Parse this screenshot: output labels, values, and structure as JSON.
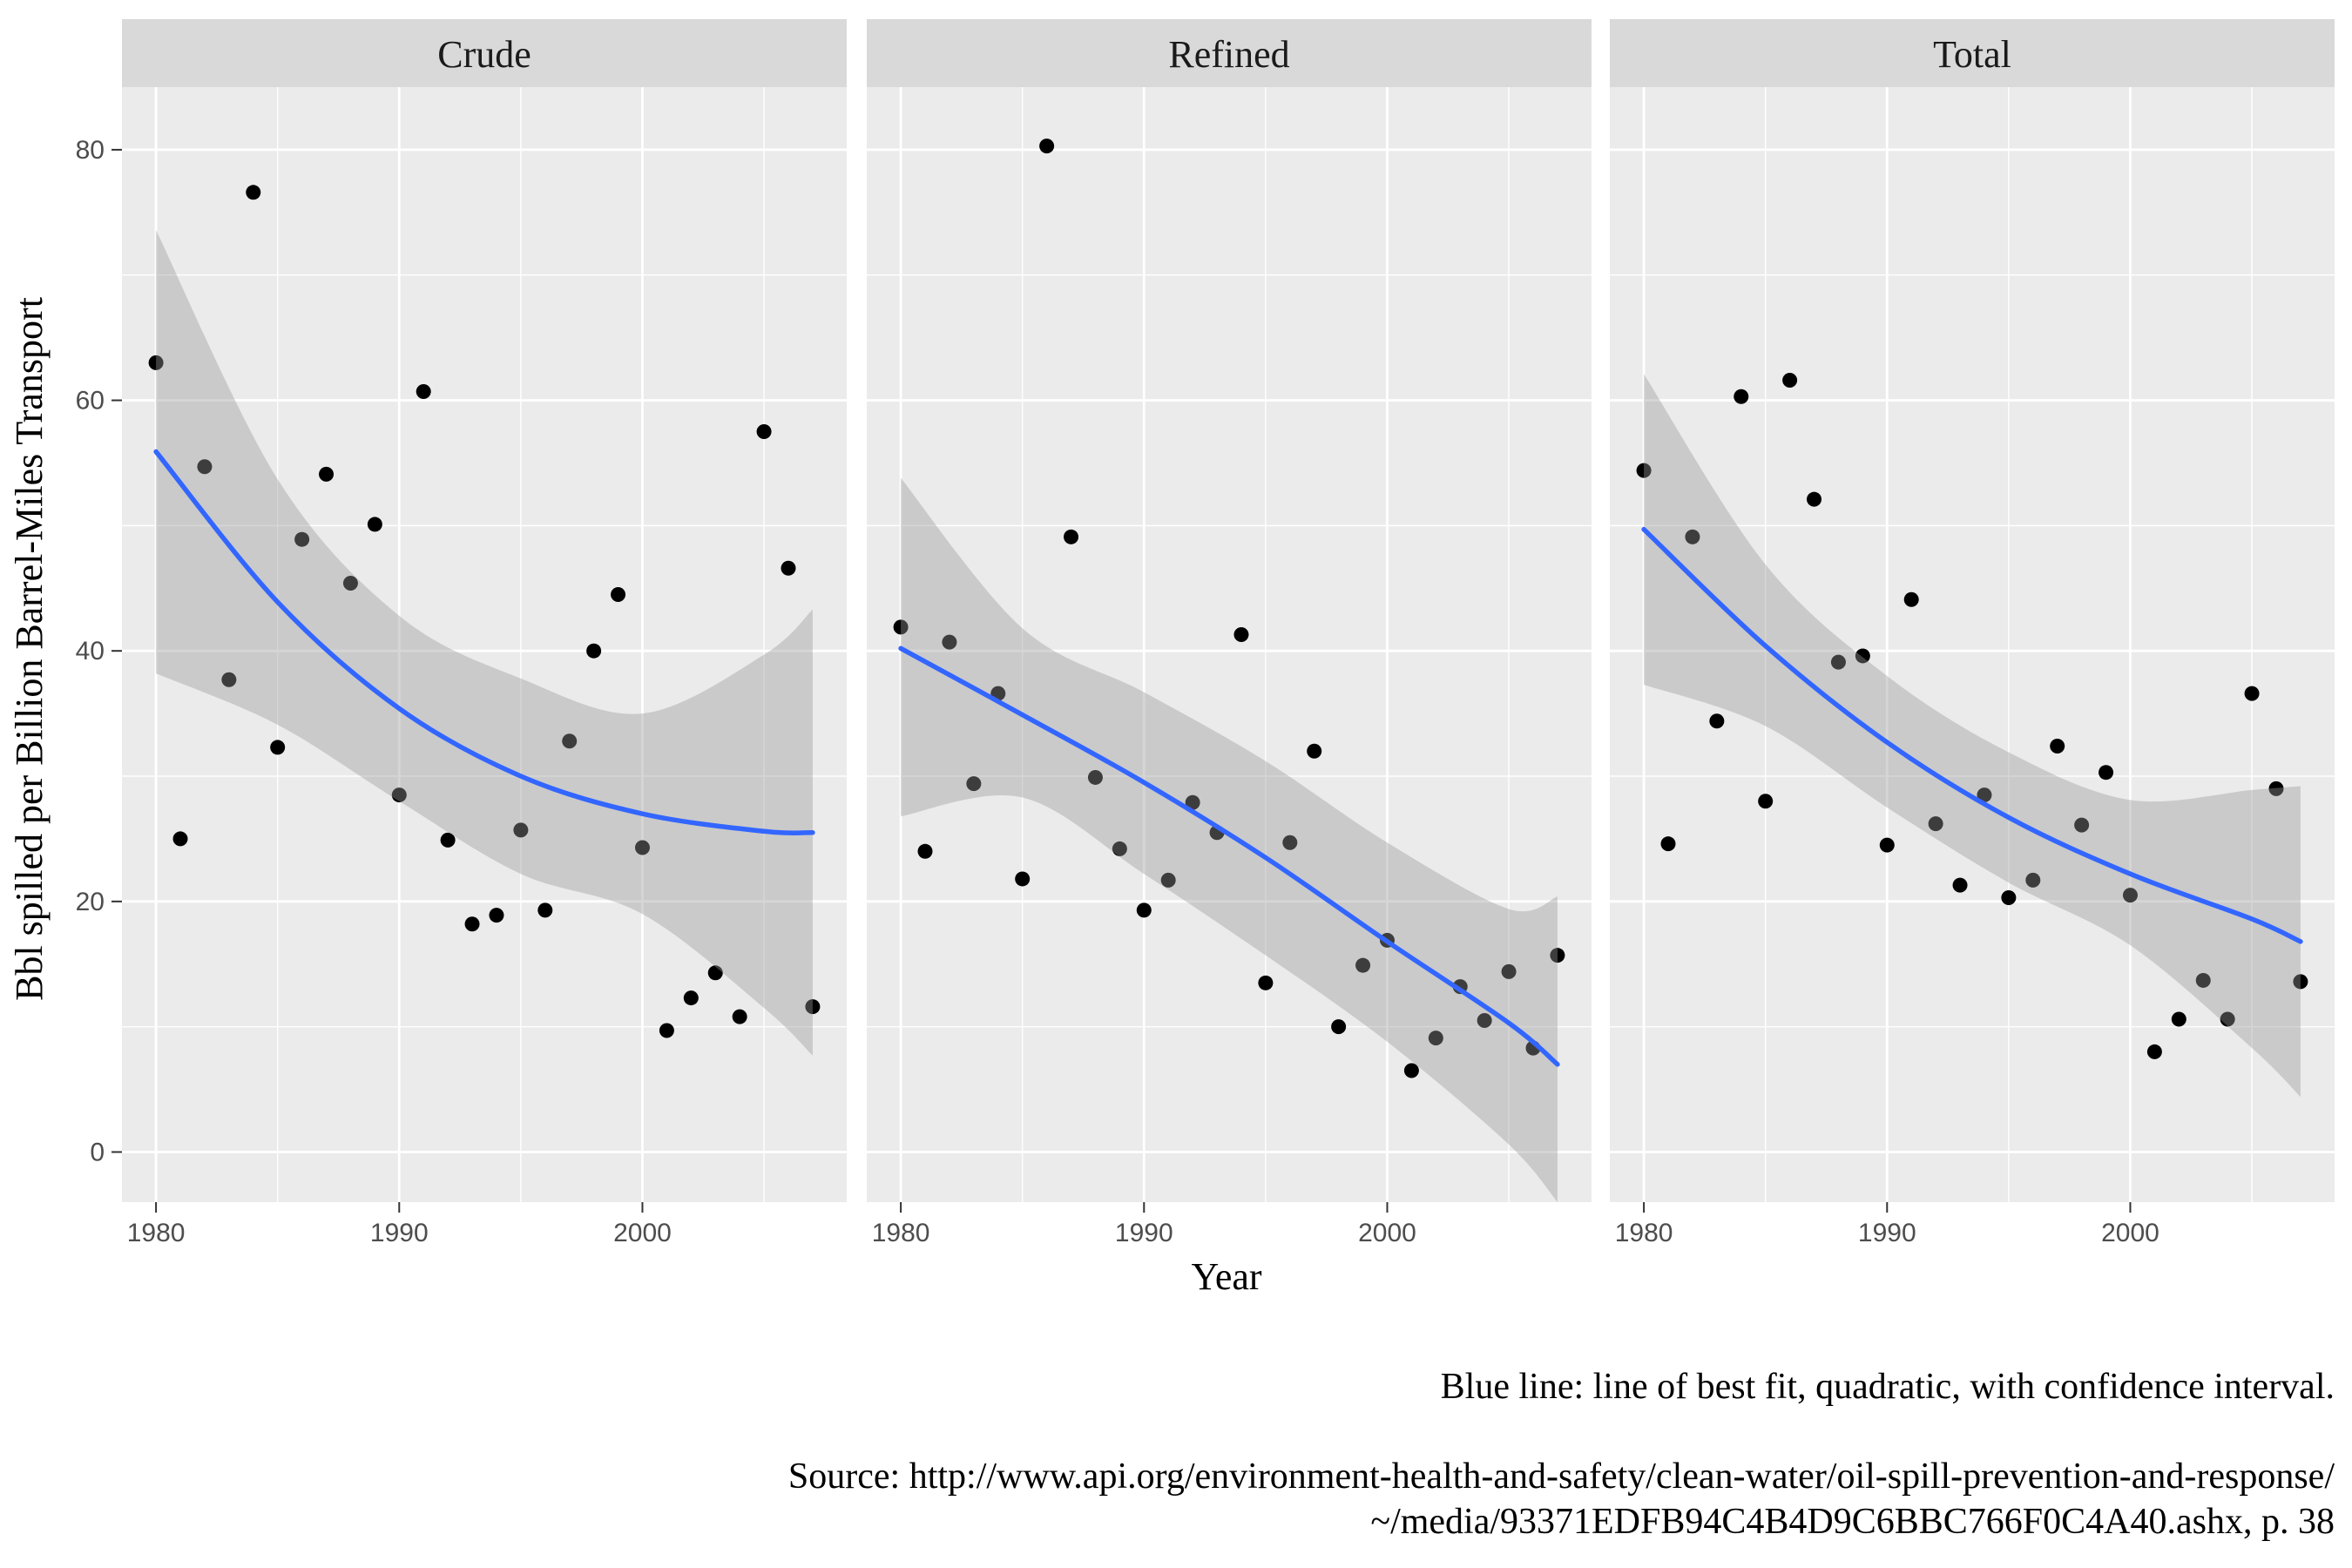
{
  "chart_data": {
    "type": "scatter",
    "facets": [
      "Crude",
      "Refined",
      "Total"
    ],
    "xlabel": "Year",
    "ylabel": "Bbl spilled per Billion Barrel-Miles Transport",
    "xlim": [
      1978.6,
      2008.4
    ],
    "ylim": [
      -4,
      85
    ],
    "x_ticks": [
      1980,
      1990,
      2000
    ],
    "y_ticks": [
      0,
      20,
      40,
      60,
      80
    ],
    "grid": true,
    "panel_background": "#ebebeb",
    "strip_background": "#d9d9d9",
    "point_color": "#000000",
    "fit_color": "#3366ff",
    "ribbon_color": "#999999",
    "series": [
      {
        "name": "Crude",
        "points": [
          [
            1980,
            63.0
          ],
          [
            1981,
            25.0
          ],
          [
            1982,
            54.7
          ],
          [
            1983,
            37.7
          ],
          [
            1984,
            76.6
          ],
          [
            1985,
            32.3
          ],
          [
            1986,
            48.9
          ],
          [
            1987,
            54.1
          ],
          [
            1988,
            45.4
          ],
          [
            1989,
            50.1
          ],
          [
            1990,
            28.5
          ],
          [
            1991,
            60.7
          ],
          [
            1992,
            24.9
          ],
          [
            1993,
            18.2
          ],
          [
            1994,
            18.9
          ],
          [
            1995,
            25.7
          ],
          [
            1996,
            19.3
          ],
          [
            1997,
            32.8
          ],
          [
            1998,
            40.0
          ],
          [
            1999,
            44.5
          ],
          [
            2000,
            24.3
          ],
          [
            2001,
            9.7
          ],
          [
            2002,
            12.3
          ],
          [
            2003,
            14.3
          ],
          [
            2004,
            10.8
          ],
          [
            2005,
            57.5
          ],
          [
            2006,
            46.6
          ],
          [
            2007,
            11.6
          ]
        ],
        "fit": {
          "x": [
            1980,
            1985,
            1990,
            1995,
            2000,
            2005,
            2007
          ],
          "y": [
            55.9,
            43.9,
            35.4,
            30.0,
            27.0,
            25.6,
            25.5
          ],
          "lower": [
            38.2,
            34.1,
            28.0,
            22.2,
            19.0,
            11.5,
            7.7
          ],
          "upper": [
            73.6,
            53.7,
            42.8,
            37.8,
            35.0,
            39.7,
            43.3
          ]
        }
      },
      {
        "name": "Refined",
        "points": [
          [
            1980,
            41.9
          ],
          [
            1981,
            24.0
          ],
          [
            1982,
            40.7
          ],
          [
            1983,
            29.4
          ],
          [
            1984,
            36.6
          ],
          [
            1985,
            21.8
          ],
          [
            1986,
            80.3
          ],
          [
            1987,
            49.1
          ],
          [
            1988,
            29.9
          ],
          [
            1989,
            24.2
          ],
          [
            1990,
            19.3
          ],
          [
            1991,
            21.7
          ],
          [
            1992,
            27.9
          ],
          [
            1993,
            25.5
          ],
          [
            1994,
            41.3
          ],
          [
            1995,
            13.5
          ],
          [
            1996,
            24.7
          ],
          [
            1997,
            32.0
          ],
          [
            1998,
            10.0
          ],
          [
            1999,
            14.9
          ],
          [
            2000,
            16.9
          ],
          [
            2001,
            6.5
          ],
          [
            2002,
            9.1
          ],
          [
            2003,
            13.2
          ],
          [
            2004,
            10.5
          ],
          [
            2005,
            14.4
          ],
          [
            2006,
            8.3
          ],
          [
            2007,
            15.7
          ]
        ],
        "fit": {
          "x": [
            1980,
            1985,
            1990,
            1995,
            2000,
            2005,
            2007
          ],
          "y": [
            40.2,
            34.9,
            29.5,
            23.5,
            16.8,
            10.3,
            7.0
          ],
          "lower": [
            26.8,
            28.3,
            22.2,
            15.7,
            8.8,
            0.6,
            -4.0
          ],
          "upper": [
            53.8,
            41.8,
            36.7,
            31.2,
            24.7,
            19.4,
            20.4
          ]
        }
      },
      {
        "name": "Total",
        "points": [
          [
            1980,
            54.4
          ],
          [
            1981,
            24.6
          ],
          [
            1982,
            49.1
          ],
          [
            1983,
            34.4
          ],
          [
            1984,
            60.3
          ],
          [
            1985,
            28.0
          ],
          [
            1986,
            61.6
          ],
          [
            1987,
            52.1
          ],
          [
            1988,
            39.1
          ],
          [
            1989,
            39.6
          ],
          [
            1990,
            24.5
          ],
          [
            1991,
            44.1
          ],
          [
            1992,
            26.2
          ],
          [
            1993,
            21.3
          ],
          [
            1994,
            28.5
          ],
          [
            1995,
            20.3
          ],
          [
            1996,
            21.7
          ],
          [
            1997,
            32.4
          ],
          [
            1998,
            26.1
          ],
          [
            1999,
            30.3
          ],
          [
            2000,
            20.5
          ],
          [
            2001,
            8.0
          ],
          [
            2002,
            10.6
          ],
          [
            2003,
            13.7
          ],
          [
            2004,
            10.6
          ],
          [
            2005,
            36.6
          ],
          [
            2006,
            29.0
          ],
          [
            2007,
            13.6
          ]
        ],
        "fit": {
          "x": [
            1980,
            1985,
            1990,
            1995,
            2000,
            2005,
            2007
          ],
          "y": [
            49.7,
            40.4,
            32.7,
            26.7,
            22.2,
            18.6,
            16.8
          ],
          "lower": [
            37.3,
            34.0,
            27.5,
            21.5,
            16.5,
            8.3,
            4.4
          ],
          "upper": [
            62.1,
            46.9,
            38.0,
            31.9,
            28.1,
            28.9,
            29.2
          ]
        }
      }
    ]
  },
  "caption": {
    "note": "Blue line: line of best fit, quadratic, with confidence interval.",
    "source_line1": "Source: http://www.api.org/environment-health-and-safety/clean-water/oil-spill-prevention-and-response/",
    "source_line2": "~/media/93371EDFB94C4B4D9C6BBC766F0C4A40.ashx, p. 38"
  }
}
